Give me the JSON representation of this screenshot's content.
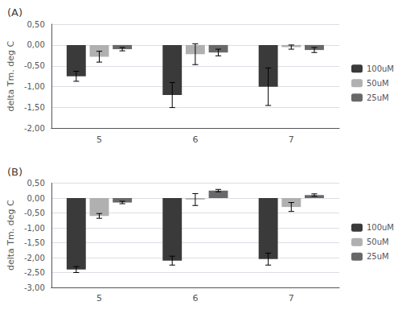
{
  "chart_data": [
    {
      "type": "bar",
      "title": "(A)",
      "ylabel": "delta Tm. deg C",
      "categories": [
        "5",
        "6",
        "7"
      ],
      "series": [
        {
          "name": "100uM",
          "color": "#3a3a3a",
          "values": [
            -0.75,
            -1.2,
            -1.0
          ],
          "errors": [
            0.12,
            0.3,
            0.45
          ]
        },
        {
          "name": "50uM",
          "color": "#b0b0b0",
          "values": [
            -0.28,
            -0.22,
            -0.05
          ],
          "errors": [
            0.13,
            0.25,
            0.05
          ]
        },
        {
          "name": "25uM",
          "color": "#686868",
          "values": [
            -0.1,
            -0.18,
            -0.12
          ],
          "errors": [
            0.04,
            0.08,
            0.06
          ]
        }
      ],
      "ylim": [
        -2.0,
        0.5
      ],
      "yticks": [
        {
          "value": 0.5,
          "label": "0,50"
        },
        {
          "value": 0.0,
          "label": "0,00"
        },
        {
          "value": -0.5,
          "label": "-0,50"
        },
        {
          "value": -1.0,
          "label": "-1,00"
        },
        {
          "value": -1.5,
          "label": "-1,50"
        },
        {
          "value": -2.0,
          "label": "-2,00"
        }
      ],
      "grid": true,
      "legend": "right"
    },
    {
      "type": "bar",
      "title": "(B)",
      "ylabel": "delta Tm. deg C",
      "categories": [
        "5",
        "6",
        "7"
      ],
      "series": [
        {
          "name": "100uM",
          "color": "#3a3a3a",
          "values": [
            -2.4,
            -2.1,
            -2.05
          ],
          "errors": [
            0.1,
            0.15,
            0.2
          ]
        },
        {
          "name": "50uM",
          "color": "#b0b0b0",
          "values": [
            -0.6,
            -0.05,
            -0.3
          ],
          "errors": [
            0.08,
            0.2,
            0.15
          ]
        },
        {
          "name": "25uM",
          "color": "#686868",
          "values": [
            -0.15,
            0.25,
            0.1
          ],
          "errors": [
            0.04,
            0.04,
            0.04
          ]
        }
      ],
      "ylim": [
        -3.0,
        0.5
      ],
      "yticks": [
        {
          "value": 0.5,
          "label": "0,50"
        },
        {
          "value": 0.0,
          "label": "0,00"
        },
        {
          "value": -0.5,
          "label": "-0,50"
        },
        {
          "value": -1.0,
          "label": "-1,00"
        },
        {
          "value": -1.5,
          "label": "-1,50"
        },
        {
          "value": -2.0,
          "label": "-2,00"
        },
        {
          "value": -2.5,
          "label": "-2,50"
        },
        {
          "value": -3.0,
          "label": "-3,00"
        }
      ],
      "grid": true,
      "legend": "right"
    }
  ]
}
